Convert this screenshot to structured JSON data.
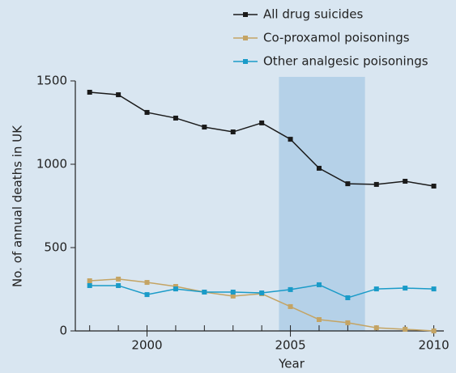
{
  "chart_data": {
    "type": "line",
    "x_label": "Year",
    "y_label": "No. of annual deaths in UK",
    "x": [
      1998,
      1999,
      2000,
      2001,
      2002,
      2003,
      2004,
      2005,
      2006,
      2007,
      2008,
      2009,
      2010
    ],
    "series": [
      {
        "name": "All drug suicides",
        "color": "#1a1a1a",
        "values": [
          1432,
          1417,
          1311,
          1277,
          1223,
          1194,
          1248,
          1150,
          976,
          883,
          879,
          898,
          869
        ]
      },
      {
        "name": "Co-proxamol poisonings",
        "color": "#c4a464",
        "values": [
          301,
          311,
          291,
          267,
          233,
          209,
          223,
          146,
          68,
          49,
          19,
          10,
          0
        ]
      },
      {
        "name": "Other analgesic poisonings",
        "color": "#1a9bc8",
        "values": [
          272,
          272,
          218,
          252,
          233,
          233,
          228,
          248,
          277,
          199,
          252,
          257,
          252
        ]
      }
    ],
    "xlim": [
      1997.5,
      2010.35
    ],
    "xticks": [
      2000,
      2005,
      2010
    ],
    "xminorticks": [
      1998,
      1999,
      2000,
      2001,
      2002,
      2003,
      2004,
      2005,
      2006,
      2007,
      2008,
      2009,
      2010
    ],
    "ylim": [
      0,
      1500
    ],
    "yticks": [
      0,
      500,
      1000,
      1500
    ],
    "highlight": {
      "x": [
        2004.6,
        2007.6
      ],
      "color": "#b5d1e8"
    },
    "legend": "top-right"
  }
}
